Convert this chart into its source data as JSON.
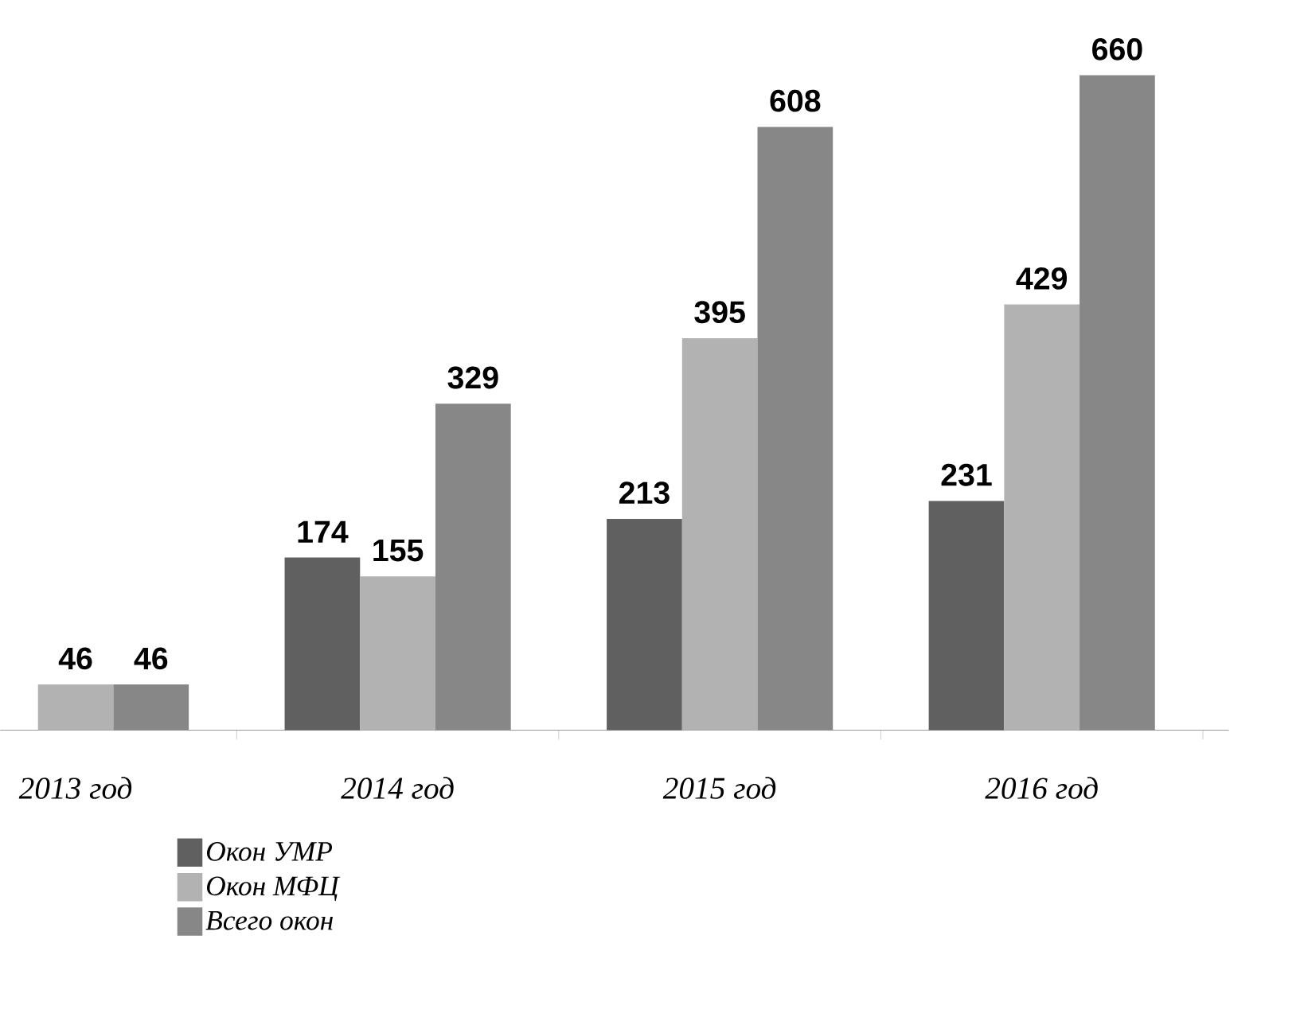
{
  "chart_data": {
    "type": "bar",
    "categories": [
      "2013 год",
      "2014 год",
      "2015 год",
      "2016 год"
    ],
    "series": [
      {
        "name": "Окон УМР",
        "color": "#606060",
        "values": [
          null,
          174,
          213,
          231
        ]
      },
      {
        "name": "Окон МФЦ",
        "color": "#b2b2b2",
        "values": [
          46,
          155,
          395,
          429
        ]
      },
      {
        "name": "Всего окон",
        "color": "#878787",
        "values": [
          46,
          329,
          608,
          660
        ]
      }
    ],
    "data_labels": true,
    "legend": "bottom"
  }
}
